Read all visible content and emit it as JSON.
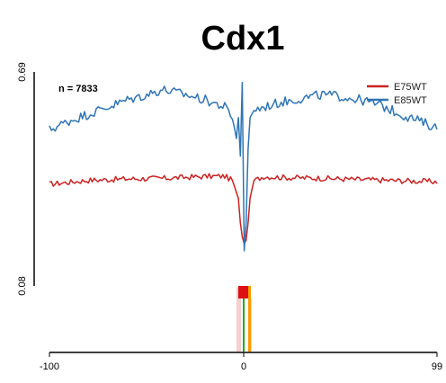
{
  "chart_data": {
    "type": "line",
    "title": "Cdx1",
    "annotation": "n = 7833",
    "x_tick_labels": [
      "-100",
      "0",
      "99"
    ],
    "y_tick_labels": [
      "0.69",
      "0.08"
    ],
    "xlim": [
      -100,
      99
    ],
    "ylim": [
      0.08,
      0.69
    ],
    "legend_position": "top-right",
    "grid": false,
    "series": [
      {
        "name": "E75WT",
        "color": "#cc2222",
        "points": [
          [
            -100,
            0.37
          ],
          [
            -80,
            0.381
          ],
          [
            -60,
            0.385
          ],
          [
            -40,
            0.387
          ],
          [
            -20,
            0.392
          ],
          [
            -10,
            0.393
          ],
          [
            -6,
            0.38
          ],
          [
            -3,
            0.33
          ],
          [
            -2,
            0.26
          ],
          [
            -1,
            0.22
          ],
          [
            0,
            0.2
          ],
          [
            1,
            0.21
          ],
          [
            2,
            0.26
          ],
          [
            3,
            0.33
          ],
          [
            5,
            0.38
          ],
          [
            10,
            0.392
          ],
          [
            20,
            0.389
          ],
          [
            40,
            0.387
          ],
          [
            60,
            0.383
          ],
          [
            80,
            0.38
          ],
          [
            99,
            0.377
          ]
        ]
      },
      {
        "name": "E85WT",
        "color": "#2e75b6",
        "points": [
          [
            -100,
            0.525
          ],
          [
            -90,
            0.55
          ],
          [
            -80,
            0.57
          ],
          [
            -70,
            0.59
          ],
          [
            -60,
            0.61
          ],
          [
            -50,
            0.625
          ],
          [
            -42,
            0.64
          ],
          [
            -30,
            0.625
          ],
          [
            -20,
            0.61
          ],
          [
            -10,
            0.59
          ],
          [
            -6,
            0.56
          ],
          [
            -4,
            0.5
          ],
          [
            -3,
            0.56
          ],
          [
            -2,
            0.45
          ],
          [
            -1,
            0.66
          ],
          [
            0,
            0.18
          ],
          [
            1,
            0.26
          ],
          [
            2,
            0.47
          ],
          [
            3,
            0.56
          ],
          [
            5,
            0.58
          ],
          [
            10,
            0.59
          ],
          [
            20,
            0.605
          ],
          [
            30,
            0.615
          ],
          [
            40,
            0.625
          ],
          [
            50,
            0.62
          ],
          [
            60,
            0.61
          ],
          [
            70,
            0.595
          ],
          [
            80,
            0.57
          ],
          [
            90,
            0.55
          ],
          [
            99,
            0.53
          ]
        ]
      }
    ],
    "colors": {
      "axis": "#000000",
      "peak_bars": [
        "#dd1111",
        "#ff9900",
        "#22aa22",
        "#f4c2c2",
        "#c9d6ea"
      ]
    }
  }
}
